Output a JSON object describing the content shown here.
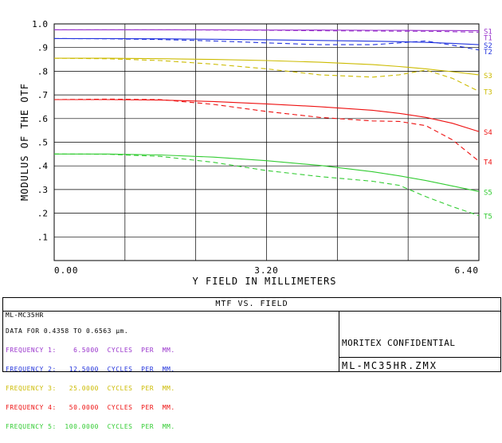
{
  "chart_data": {
    "type": "line",
    "title": "MTF VS. FIELD",
    "xlabel": "Y FIELD IN MILLIMETERS",
    "ylabel": "MODULUS OF THE OTF",
    "xlim": [
      0,
      6.4
    ],
    "ylim": [
      0,
      1.0
    ],
    "x_ticks": [
      "0.00",
      "3.20",
      "6.40"
    ],
    "y_ticks": [
      ".1",
      ".2",
      ".3",
      ".4",
      ".5",
      ".6",
      ".7",
      ".8",
      ".9",
      "1.0"
    ],
    "x": [
      0,
      0.8,
      1.6,
      2.4,
      3.2,
      4.0,
      4.8,
      5.2,
      5.6,
      6.0,
      6.4
    ],
    "series": [
      {
        "name": "S1",
        "color": "#9933cc",
        "style": "solid",
        "values": [
          0.975,
          0.975,
          0.975,
          0.975,
          0.974,
          0.974,
          0.973,
          0.973,
          0.972,
          0.972,
          0.971
        ]
      },
      {
        "name": "T1",
        "color": "#9933cc",
        "style": "dashed",
        "values": [
          0.975,
          0.975,
          0.975,
          0.974,
          0.973,
          0.971,
          0.97,
          0.969,
          0.969,
          0.967,
          0.965
        ]
      },
      {
        "name": "S2",
        "color": "#2233dd",
        "style": "solid",
        "values": [
          0.938,
          0.938,
          0.937,
          0.935,
          0.933,
          0.93,
          0.927,
          0.925,
          0.922,
          0.918,
          0.912
        ]
      },
      {
        "name": "T2",
        "color": "#2233dd",
        "style": "dashed",
        "values": [
          0.938,
          0.937,
          0.934,
          0.928,
          0.92,
          0.912,
          0.912,
          0.92,
          0.928,
          0.91,
          0.89
        ]
      },
      {
        "name": "S3",
        "color": "#ccbb00",
        "style": "solid",
        "values": [
          0.855,
          0.855,
          0.853,
          0.85,
          0.845,
          0.838,
          0.828,
          0.82,
          0.81,
          0.798,
          0.785
        ]
      },
      {
        "name": "T3",
        "color": "#ccbb00",
        "style": "dashed",
        "values": [
          0.855,
          0.853,
          0.845,
          0.83,
          0.81,
          0.785,
          0.775,
          0.785,
          0.805,
          0.77,
          0.715
        ]
      },
      {
        "name": "S4",
        "color": "#ee1111",
        "style": "solid",
        "values": [
          0.68,
          0.68,
          0.678,
          0.672,
          0.662,
          0.65,
          0.635,
          0.622,
          0.605,
          0.58,
          0.545
        ]
      },
      {
        "name": "T4",
        "color": "#ee1111",
        "style": "dashed",
        "values": [
          0.68,
          0.682,
          0.68,
          0.66,
          0.63,
          0.605,
          0.59,
          0.588,
          0.57,
          0.51,
          0.42
        ]
      },
      {
        "name": "S5",
        "color": "#33cc33",
        "style": "solid",
        "values": [
          0.45,
          0.45,
          0.446,
          0.437,
          0.422,
          0.402,
          0.375,
          0.358,
          0.338,
          0.315,
          0.292
        ]
      },
      {
        "name": "T5",
        "color": "#33cc33",
        "style": "dashed",
        "values": [
          0.45,
          0.449,
          0.44,
          0.415,
          0.38,
          0.355,
          0.335,
          0.318,
          0.27,
          0.228,
          0.19
        ]
      }
    ]
  },
  "footer": {
    "header": "MTF VS. FIELD",
    "lens_name": "ML-MC35HR",
    "data_for": "DATA FOR 0.4358 TO 0.6563 µm.",
    "frequencies": [
      {
        "text": "FREQUENCY 1:    6.5000  CYCLES  PER  MM.",
        "color": "#9933cc"
      },
      {
        "text": "FREQUENCY 2:   12.5000  CYCLES  PER  MM.",
        "color": "#2233dd"
      },
      {
        "text": "FREQUENCY 3:   25.0000  CYCLES  PER  MM.",
        "color": "#ccbb00"
      },
      {
        "text": "FREQUENCY 4:   50.0000  CYCLES  PER  MM.",
        "color": "#ee1111"
      },
      {
        "text": "FREQUENCY 5:  100.0000  CYCLES  PER  MM.",
        "color": "#33cc33"
      }
    ],
    "confidential": "MORITEX CONFIDENTIAL",
    "file_name": "ML-MC35HR.ZMX"
  }
}
